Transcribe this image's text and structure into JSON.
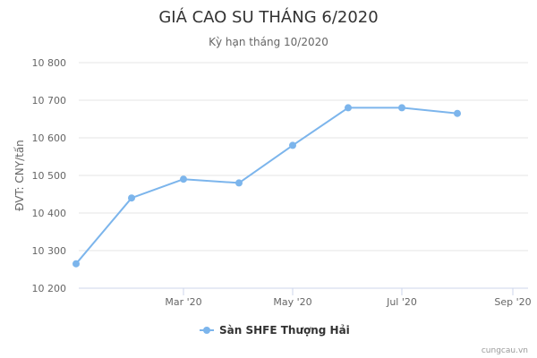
{
  "chart_data": {
    "type": "line",
    "title": "GIÁ CAO SU THÁNG 6/2020",
    "subtitle": "Kỳ hạn tháng 10/2020",
    "ylabel": "ĐVT: CNY/tấn",
    "xlabel": "",
    "ylim": [
      10200,
      10800
    ],
    "yticks": [
      "10 200",
      "10 300",
      "10 400",
      "10 500",
      "10 600",
      "10 700",
      "10 800"
    ],
    "xticks": [
      "Mar '20",
      "May '20",
      "Jul '20",
      "Sep '20"
    ],
    "x": [
      "2020-01-01",
      "2020-02-01",
      "2020-03-01",
      "2020-04-01",
      "2020-05-01",
      "2020-06-01",
      "2020-07-01",
      "2020-08-01"
    ],
    "series": [
      {
        "name": "Sàn SHFE Thượng Hải",
        "color": "#7cb5ec",
        "values": [
          10265,
          10440,
          10490,
          10480,
          10580,
          10680,
          10680,
          10665
        ]
      }
    ],
    "grid": true,
    "legend": "bottom-center"
  },
  "credit": "cungcau.vn"
}
